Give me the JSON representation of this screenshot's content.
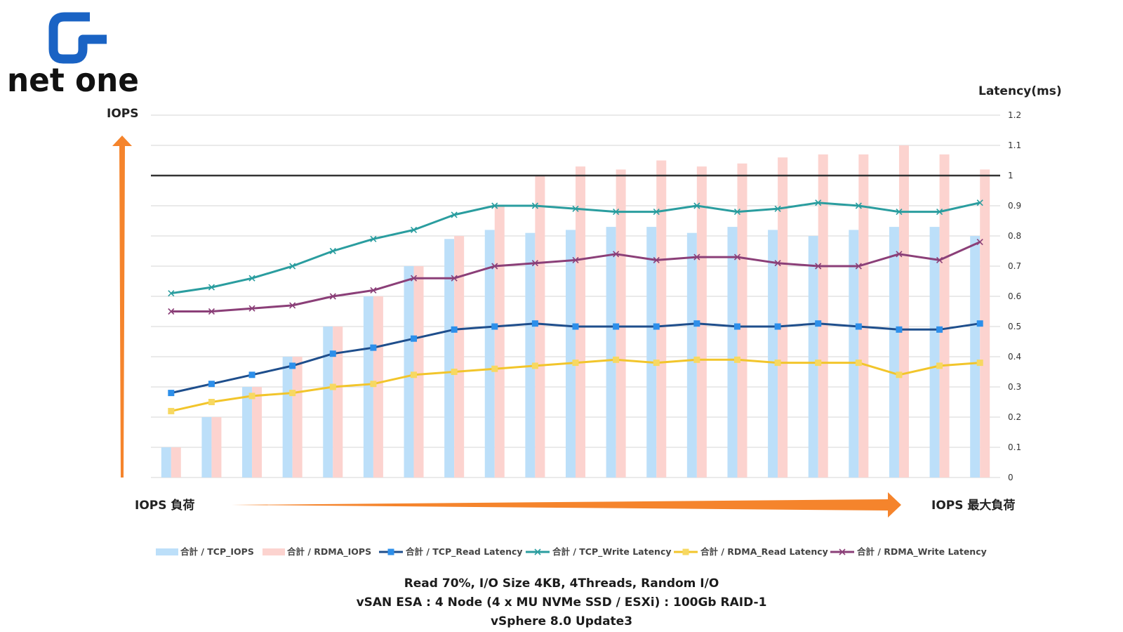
{
  "logo": {
    "text": "net one"
  },
  "footer": {
    "line1": "Read 70%, I/O Size 4KB, 4Threads, Random I/O",
    "line2": "vSAN ESA : 4 Node (4 x MU NVMe SSD / ESXi) : 100Gb RAID-1",
    "line3": "vSphere 8.0 Update3"
  },
  "colors": {
    "tcp_iops": "#bcdff9",
    "rdma_iops": "#fcd3cf",
    "tcp_read": "#1e4e8c",
    "tcp_read_marker": "#2d8fea",
    "tcp_write": "#2a9d9f",
    "rdma_read": "#f2c52b",
    "rdma_read_marker": "#f7d861",
    "rdma_write": "#8b3f78",
    "arrow": "#f5842c",
    "threshold": "#333333"
  },
  "chart_data": {
    "type": "bar",
    "ylabel_left": "IOPS",
    "ylabel_right": "Latency(ms)",
    "xlabel_left": "IOPS 負荷",
    "xlabel_right": "IOPS 最大負荷",
    "right_axis_ticks": [
      "0",
      "0.1",
      "0.2",
      "0.3",
      "0.4",
      "0.5",
      "0.6",
      "0.7",
      "0.8",
      "0.9",
      "1",
      "1.1",
      "1.2"
    ],
    "ylim_right": [
      0,
      1.2
    ],
    "threshold_latency": 1,
    "grid": true,
    "legend_position": "bottom",
    "bar_series": [
      {
        "name": "合計 / TCP_IOPS",
        "values": [
          0.1,
          0.2,
          0.3,
          0.4,
          0.5,
          0.6,
          0.7,
          0.79,
          0.82,
          0.81,
          0.82,
          0.83,
          0.83,
          0.81,
          0.83,
          0.82,
          0.8,
          0.82,
          0.83,
          0.83,
          0.8
        ]
      },
      {
        "name": "合計 / RDMA_IOPS",
        "values": [
          0.1,
          0.2,
          0.3,
          0.4,
          0.5,
          0.6,
          0.7,
          0.8,
          0.9,
          1.0,
          1.03,
          1.02,
          1.05,
          1.03,
          1.04,
          1.06,
          1.07,
          1.07,
          1.1,
          1.07,
          1.02
        ]
      }
    ],
    "line_series": [
      {
        "name": "合計 / TCP_Read Latency",
        "values": [
          0.28,
          0.31,
          0.34,
          0.37,
          0.41,
          0.43,
          0.46,
          0.49,
          0.5,
          0.51,
          0.5,
          0.5,
          0.5,
          0.51,
          0.5,
          0.5,
          0.51,
          0.5,
          0.49,
          0.49,
          0.51
        ]
      },
      {
        "name": "合計 / TCP_Write Latency",
        "values": [
          0.61,
          0.63,
          0.66,
          0.7,
          0.75,
          0.79,
          0.82,
          0.87,
          0.9,
          0.9,
          0.89,
          0.88,
          0.88,
          0.9,
          0.88,
          0.89,
          0.91,
          0.9,
          0.88,
          0.88,
          0.91
        ]
      },
      {
        "name": "合計 / RDMA_Read Latency",
        "values": [
          0.22,
          0.25,
          0.27,
          0.28,
          0.3,
          0.31,
          0.34,
          0.35,
          0.36,
          0.37,
          0.38,
          0.39,
          0.38,
          0.39,
          0.39,
          0.38,
          0.38,
          0.38,
          0.34,
          0.37,
          0.38
        ]
      },
      {
        "name": "合計 / RDMA_Write Latency",
        "values": [
          0.55,
          0.55,
          0.56,
          0.57,
          0.6,
          0.62,
          0.66,
          0.66,
          0.7,
          0.71,
          0.72,
          0.74,
          0.72,
          0.73,
          0.73,
          0.71,
          0.7,
          0.7,
          0.74,
          0.72,
          0.78
        ]
      }
    ]
  }
}
